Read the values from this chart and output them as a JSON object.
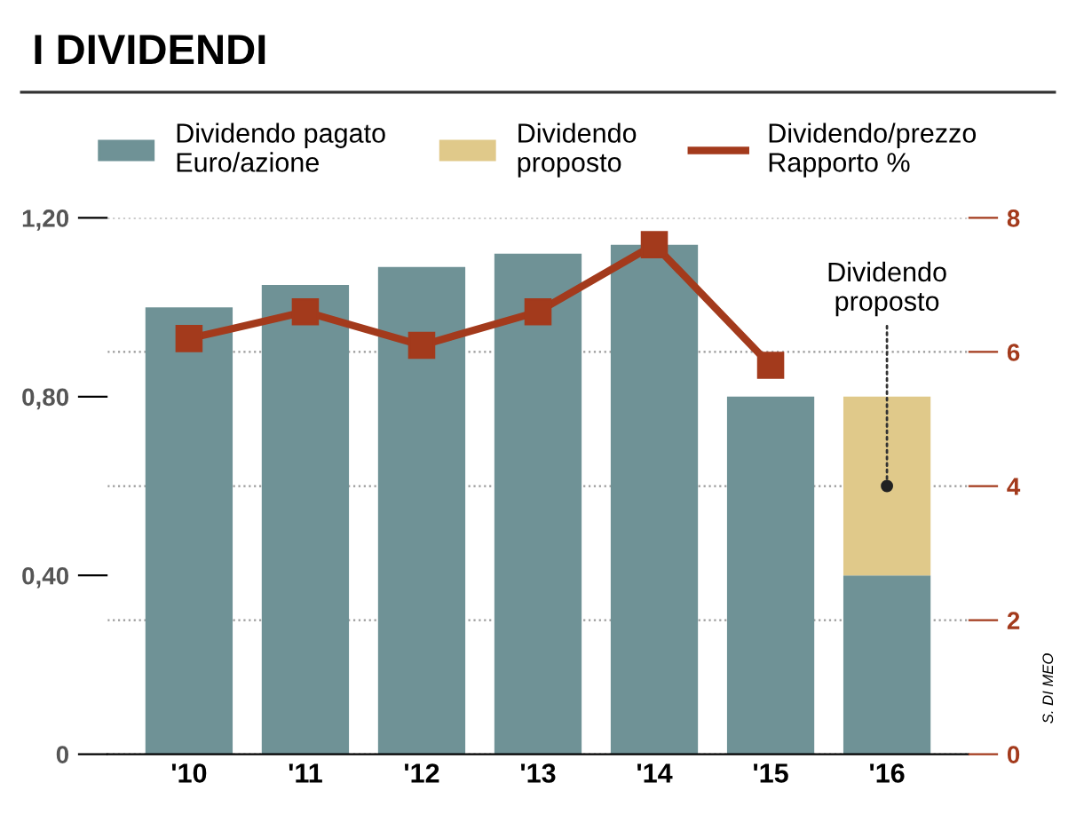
{
  "chart_data": {
    "type": "bar",
    "title": "I DIVIDENDI",
    "stacked": true,
    "categories": [
      "'10",
      "'11",
      "'12",
      "'13",
      "'14",
      "'15",
      "'16"
    ],
    "series": [
      {
        "name": "Dividendo pagato\nEuro/azione",
        "color": "#6f9296",
        "values": [
          1.0,
          1.05,
          1.09,
          1.12,
          1.14,
          0.8,
          0.4
        ]
      },
      {
        "name": "Dividendo\nproposto",
        "color": "#e0c98a",
        "values": [
          null,
          null,
          null,
          null,
          null,
          null,
          0.4
        ]
      },
      {
        "name": "Dividendo/prezzo\nRapporto %",
        "type": "line",
        "axis": "y2",
        "color": "#a33a1c",
        "marker": "square",
        "values": [
          6.2,
          6.6,
          6.1,
          6.6,
          7.6,
          5.8,
          null
        ]
      }
    ],
    "ylim": [
      0,
      1.2
    ],
    "yticks": [
      0,
      {
        "value": 0.4,
        "label": "0,40"
      },
      {
        "value": 0.8,
        "label": "0,80"
      },
      {
        "value": 1.2,
        "label": "1,20"
      }
    ],
    "y2lim": [
      0,
      8
    ],
    "y2ticks": [
      0,
      2,
      4,
      6,
      8
    ],
    "grid": "y2",
    "legend": "top",
    "annotations": [
      {
        "text": "Dividendo\nproposto",
        "x": "'16",
        "y": 0.6
      },
      "S. DI MEO"
    ]
  }
}
